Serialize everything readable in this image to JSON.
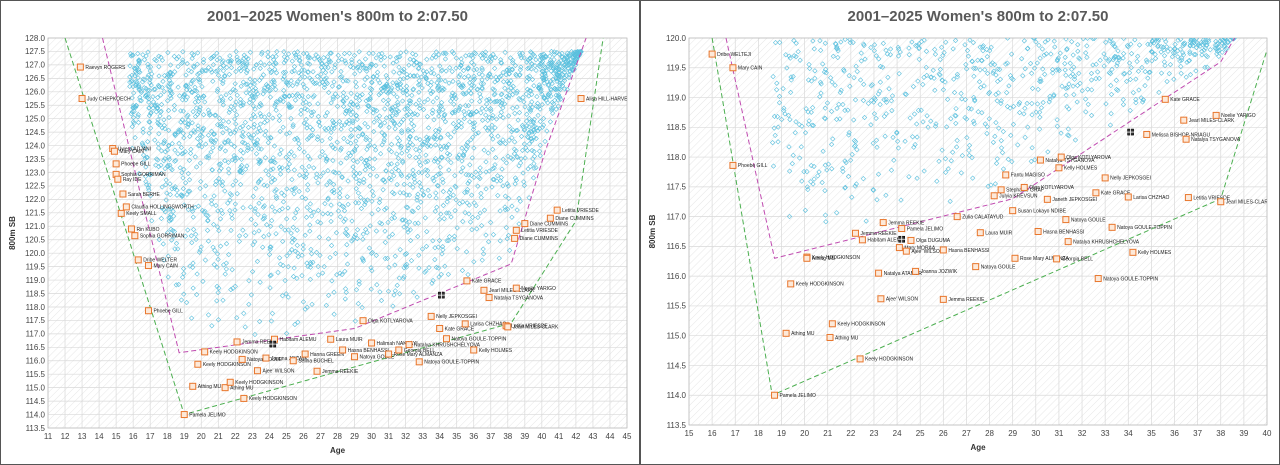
{
  "colors": {
    "cloud": "#5bc0de",
    "marker": "#e8762c",
    "marker_fill": "#fde9d9",
    "envelope_outer": "#4caf50",
    "envelope_inner": "#c04bb0",
    "grid": "#d9d9d9",
    "frame": "#555555"
  },
  "chart_data": [
    {
      "type": "scatter",
      "title": "2001–2025 Women's 800m to 2:07.50",
      "xlabel": "Age",
      "ylabel": "800m SB",
      "xlim": [
        11,
        45
      ],
      "ylim": [
        113.5,
        128
      ],
      "xticks": [
        11,
        12,
        13,
        14,
        15,
        16,
        17,
        18,
        19,
        20,
        21,
        22,
        23,
        24,
        25,
        26,
        27,
        28,
        29,
        30,
        31,
        32,
        33,
        34,
        35,
        36,
        37,
        38,
        39,
        40,
        41,
        42,
        43,
        44,
        45
      ],
      "yticks": [
        113.5,
        114,
        114.5,
        115,
        115.5,
        116,
        116.5,
        117,
        117.5,
        118,
        118.5,
        119,
        119.5,
        120,
        120.5,
        121,
        121.5,
        122,
        122.5,
        123,
        123.5,
        124,
        124.5,
        125,
        125.5,
        126,
        126.5,
        127,
        127.5,
        128
      ],
      "ytick_labels": [
        "113.5",
        "114.0",
        "114.5",
        "115.0",
        "115.5",
        "116.0",
        "116.5",
        "117.0",
        "117.5",
        "118.0",
        "118.5",
        "119.0",
        "119.5",
        "120.0",
        "120.5",
        "121.0",
        "121.5",
        "122.0",
        "122.5",
        "123.0",
        "123.5",
        "124.0",
        "124.5",
        "125.0",
        "125.5",
        "126.0",
        "126.5",
        "127.0",
        "127.5",
        "128.0"
      ],
      "grid": true,
      "cloud_region": {
        "x_min": 15.8,
        "x_max": 42.5,
        "y_max": 127.5,
        "count": 2600
      },
      "outer_envelope": [
        [
          12.0,
          128.0
        ],
        [
          19.0,
          114.0
        ],
        [
          38.2,
          117.4
        ],
        [
          42.0,
          121.2
        ],
        [
          43.6,
          128.0
        ]
      ],
      "inner_envelope": [
        [
          14.2,
          128.0
        ],
        [
          18.7,
          116.3
        ],
        [
          29.0,
          117.2
        ],
        [
          38.2,
          119.6
        ],
        [
          40.2,
          123.8
        ],
        [
          42.6,
          128.0
        ]
      ],
      "highlights": [
        [
          34.1,
          118.44
        ],
        [
          24.2,
          116.62
        ]
      ],
      "points": [
        {
          "x": 12.9,
          "y": 126.92,
          "label": "Raevyn ROGERS"
        },
        {
          "x": 13.0,
          "y": 125.75,
          "label": "Judy CHEPKOECH"
        },
        {
          "x": 14.8,
          "y": 123.89,
          "label": "Uwera ADJANI"
        },
        {
          "x": 14.9,
          "y": 123.79,
          "label": "Mary CAIN"
        },
        {
          "x": 15.0,
          "y": 123.32,
          "label": "Phoebe GILL"
        },
        {
          "x": 15.0,
          "y": 122.93,
          "label": "Sophia GORRIMAN"
        },
        {
          "x": 15.1,
          "y": 122.75,
          "label": "Ray IDE"
        },
        {
          "x": 15.4,
          "y": 122.2,
          "label": "Sarah BERHE"
        },
        {
          "x": 15.6,
          "y": 121.72,
          "label": "Claudia HOLLINGSWORTH"
        },
        {
          "x": 15.3,
          "y": 121.48,
          "label": "Keely SMALL"
        },
        {
          "x": 15.9,
          "y": 120.9,
          "label": "Rin KUBO"
        },
        {
          "x": 16.1,
          "y": 120.65,
          "label": "Sophia GORRIMAN"
        },
        {
          "x": 16.3,
          "y": 119.75,
          "label": "Dribe WELTER"
        },
        {
          "x": 16.9,
          "y": 119.54,
          "label": "Mary CAIN"
        },
        {
          "x": 16.9,
          "y": 117.86,
          "label": "Phoebe GILL"
        },
        {
          "x": 19.0,
          "y": 114.0,
          "label": "Pamela JELIMO"
        },
        {
          "x": 19.5,
          "y": 115.05,
          "label": "Athing MU"
        },
        {
          "x": 19.8,
          "y": 115.87,
          "label": "Keely HODGKINSON"
        },
        {
          "x": 20.2,
          "y": 116.33,
          "label": "Keely HODGKINSON"
        },
        {
          "x": 21.4,
          "y": 115.0,
          "label": "Athing MU"
        },
        {
          "x": 21.7,
          "y": 115.2,
          "label": "Keely HODGKINSON"
        },
        {
          "x": 22.5,
          "y": 114.6,
          "label": "Keely HODGKINSON"
        },
        {
          "x": 22.1,
          "y": 116.7,
          "label": "Jemma REEKIE"
        },
        {
          "x": 22.4,
          "y": 116.05,
          "label": "Natoya GOULE"
        },
        {
          "x": 23.3,
          "y": 115.63,
          "label": "Ajee' WILSON"
        },
        {
          "x": 23.8,
          "y": 116.1,
          "label": "Joanna JOZWIK"
        },
        {
          "x": 24.3,
          "y": 116.8,
          "label": "Habitam ALEMU"
        },
        {
          "x": 25.4,
          "y": 116.0,
          "label": "Selina BÜCHEL"
        },
        {
          "x": 26.1,
          "y": 116.25,
          "label": "Hanna GREEN"
        },
        {
          "x": 26.8,
          "y": 115.61,
          "label": "Jemma REEKIE"
        },
        {
          "x": 27.6,
          "y": 116.8,
          "label": "Laura MUIR"
        },
        {
          "x": 28.3,
          "y": 116.4,
          "label": "Hasna BENHASSI"
        },
        {
          "x": 29.0,
          "y": 116.15,
          "label": "Natoya GOULE"
        },
        {
          "x": 30.0,
          "y": 116.66,
          "label": "Halimah NAKAAYI"
        },
        {
          "x": 31.0,
          "y": 116.25,
          "label": "Rose Mary ALMANZA"
        },
        {
          "x": 31.6,
          "y": 116.4,
          "label": "Georgia BELL"
        },
        {
          "x": 32.2,
          "y": 116.6,
          "label": "Natalya KHRUSHCHELYOVA"
        },
        {
          "x": 32.8,
          "y": 115.96,
          "label": "Natoya GOULE-TOPPIN"
        },
        {
          "x": 34.0,
          "y": 117.2,
          "label": "Kate GRACE"
        },
        {
          "x": 34.4,
          "y": 116.82,
          "label": "Natoya GOULE-TOPPIN"
        },
        {
          "x": 35.5,
          "y": 117.37,
          "label": "Larisa CHZHAO"
        },
        {
          "x": 36.0,
          "y": 116.4,
          "label": "Kelly HOLMES"
        },
        {
          "x": 33.5,
          "y": 117.65,
          "label": "Nelly JEPKOSGEI"
        },
        {
          "x": 29.5,
          "y": 117.49,
          "label": "Olga KOTLYAROVA"
        },
        {
          "x": 35.6,
          "y": 118.97,
          "label": "Kate GRACE"
        },
        {
          "x": 36.6,
          "y": 118.62,
          "label": "Jearl MILES-CLARK"
        },
        {
          "x": 38.5,
          "y": 118.7,
          "label": "Noelie YARIGO"
        },
        {
          "x": 36.9,
          "y": 118.35,
          "label": "Natalya TSYGANOVA"
        },
        {
          "x": 37.9,
          "y": 117.3,
          "label": "Letitia VRIESDE"
        },
        {
          "x": 38.0,
          "y": 117.26,
          "label": "Jearl MILES-CLARK"
        },
        {
          "x": 38.4,
          "y": 120.55,
          "label": "Diane CUMMINS"
        },
        {
          "x": 38.5,
          "y": 120.85,
          "label": "Letitia VRIESDE"
        },
        {
          "x": 39.0,
          "y": 121.1,
          "label": "Diane CUMMINS"
        },
        {
          "x": 40.5,
          "y": 121.3,
          "label": "Diane CUMMINS"
        },
        {
          "x": 40.9,
          "y": 121.6,
          "label": "Letitia VRIESDE"
        },
        {
          "x": 42.3,
          "y": 125.75,
          "label": "Alisa HILL-HARVEY"
        }
      ]
    },
    {
      "type": "scatter",
      "title": "2001–2025 Women's 800m to 2:07.50",
      "xlabel": "Age",
      "ylabel": "800m SB",
      "xlim": [
        15,
        40
      ],
      "ylim": [
        113.5,
        120
      ],
      "xticks": [
        15,
        16,
        17,
        18,
        19,
        20,
        21,
        22,
        23,
        24,
        25,
        26,
        27,
        28,
        29,
        30,
        31,
        32,
        33,
        34,
        35,
        36,
        37,
        38,
        39,
        40
      ],
      "yticks": [
        113.5,
        114,
        114.5,
        115,
        115.5,
        116,
        116.5,
        117,
        117.5,
        118,
        118.5,
        119,
        119.5,
        120
      ],
      "ytick_labels": [
        "113.5",
        "114.0",
        "114.5",
        "115.0",
        "115.5",
        "116.0",
        "116.5",
        "117.0",
        "117.5",
        "118.0",
        "118.5",
        "119.0",
        "119.5",
        "120.0"
      ],
      "grid": true,
      "cloud_region": {
        "x_min": 18.6,
        "x_max": 40.0,
        "y_max": 120.0,
        "count": 750
      },
      "outer_envelope": [
        [
          16.0,
          120.0
        ],
        [
          18.6,
          114.0
        ],
        [
          38.0,
          117.3
        ],
        [
          40.0,
          119.8
        ]
      ],
      "inner_envelope": [
        [
          16.6,
          120.0
        ],
        [
          18.7,
          116.3
        ],
        [
          29.0,
          117.3
        ],
        [
          38.0,
          119.6
        ],
        [
          38.6,
          120.0
        ]
      ],
      "highlights": [
        [
          34.1,
          118.42
        ],
        [
          24.2,
          116.62
        ]
      ],
      "points": [
        {
          "x": 16.0,
          "y": 119.73,
          "label": "Dribe WELTEJI"
        },
        {
          "x": 16.9,
          "y": 119.5,
          "label": "Mary CAIN"
        },
        {
          "x": 16.9,
          "y": 117.86,
          "label": "Phoebe GILL"
        },
        {
          "x": 18.7,
          "y": 114.0,
          "label": "Pamela JELIMO"
        },
        {
          "x": 19.2,
          "y": 115.04,
          "label": "Athing MU"
        },
        {
          "x": 20.1,
          "y": 116.32,
          "label": "Keely HODGKINSON"
        },
        {
          "x": 19.4,
          "y": 115.87,
          "label": "Keely HODGKINSON"
        },
        {
          "x": 20.1,
          "y": 116.3,
          "label": "Athing MU"
        },
        {
          "x": 21.2,
          "y": 115.2,
          "label": "Keely HODGKINSON"
        },
        {
          "x": 21.1,
          "y": 114.97,
          "label": "Athing MU"
        },
        {
          "x": 22.4,
          "y": 114.61,
          "label": "Keely HODGKINSON"
        },
        {
          "x": 22.2,
          "y": 116.72,
          "label": "Jemma REEKIE"
        },
        {
          "x": 22.5,
          "y": 116.61,
          "label": "Habitam ALEMU"
        },
        {
          "x": 23.2,
          "y": 116.05,
          "label": "Natalya ATAMUR"
        },
        {
          "x": 23.3,
          "y": 115.62,
          "label": "Ajee' WILSON"
        },
        {
          "x": 23.4,
          "y": 116.9,
          "label": "Jemma REEKIE"
        },
        {
          "x": 24.2,
          "y": 116.8,
          "label": "Pamela JELIMO"
        },
        {
          "x": 24.6,
          "y": 116.6,
          "label": "Olga DUGUMA"
        },
        {
          "x": 24.1,
          "y": 116.48,
          "label": "Mary MORAA"
        },
        {
          "x": 24.8,
          "y": 116.08,
          "label": "Joanna JOZWIK"
        },
        {
          "x": 24.4,
          "y": 116.42,
          "label": "Ajee' WILSON"
        },
        {
          "x": 26.0,
          "y": 115.61,
          "label": "Jemma REEKIE"
        },
        {
          "x": 26.0,
          "y": 116.44,
          "label": "Hasna BENHASSI"
        },
        {
          "x": 26.6,
          "y": 117.0,
          "label": "Zulia CALATAYUD"
        },
        {
          "x": 27.4,
          "y": 116.16,
          "label": "Natoya GOULE"
        },
        {
          "x": 27.6,
          "y": 116.73,
          "label": "Laura MUIR"
        },
        {
          "x": 28.2,
          "y": 117.35,
          "label": "Julyia KREVSUN"
        },
        {
          "x": 28.5,
          "y": 117.45,
          "label": "Stephanie GRAF"
        },
        {
          "x": 28.7,
          "y": 117.7,
          "label": "Fantu MAGISO"
        },
        {
          "x": 29.0,
          "y": 117.1,
          "label": "Susan Lokayo NDIBE"
        },
        {
          "x": 29.1,
          "y": 116.3,
          "label": "Rose Mary ALMANZA"
        },
        {
          "x": 29.5,
          "y": 117.49,
          "label": "Olga KOTLYAROVA"
        },
        {
          "x": 30.1,
          "y": 116.75,
          "label": "Hasna BENHASSI"
        },
        {
          "x": 30.5,
          "y": 117.29,
          "label": "Janeth JEPKOSGEI"
        },
        {
          "x": 30.2,
          "y": 117.95,
          "label": "Natalya TSYGANOVA"
        },
        {
          "x": 30.9,
          "y": 116.29,
          "label": "Georgia BELL"
        },
        {
          "x": 31.0,
          "y": 117.82,
          "label": "Kelly HOLMES"
        },
        {
          "x": 31.1,
          "y": 118.0,
          "label": "Olga KOTLYAROVA"
        },
        {
          "x": 31.4,
          "y": 116.58,
          "label": "Natalya KHRUSHCHELYOVA"
        },
        {
          "x": 31.3,
          "y": 116.95,
          "label": "Natoya GOULE"
        },
        {
          "x": 32.6,
          "y": 117.4,
          "label": "Kate GRACE"
        },
        {
          "x": 33.0,
          "y": 117.65,
          "label": "Nelly JEPKOSGEI"
        },
        {
          "x": 32.7,
          "y": 115.96,
          "label": "Natoya GOULE-TOPPIN"
        },
        {
          "x": 33.3,
          "y": 116.82,
          "label": "Natoya GOULE-TOPPIN"
        },
        {
          "x": 34.0,
          "y": 117.33,
          "label": "Larisa CHZHAO"
        },
        {
          "x": 34.2,
          "y": 116.4,
          "label": "Kelly HOLMES"
        },
        {
          "x": 34.8,
          "y": 118.38,
          "label": "Melissa BISHOP-NRIAGU"
        },
        {
          "x": 35.6,
          "y": 118.97,
          "label": "Kate GRACE"
        },
        {
          "x": 36.4,
          "y": 118.62,
          "label": "Jearl MILES-CLARK"
        },
        {
          "x": 37.8,
          "y": 118.7,
          "label": "Noelie YARIGO"
        },
        {
          "x": 36.5,
          "y": 118.3,
          "label": "Natalya TSYGANOVA"
        },
        {
          "x": 36.6,
          "y": 117.32,
          "label": "Letitia VRIESDE"
        },
        {
          "x": 38.0,
          "y": 117.25,
          "label": "Jearl MILES-CLARK"
        }
      ]
    }
  ]
}
